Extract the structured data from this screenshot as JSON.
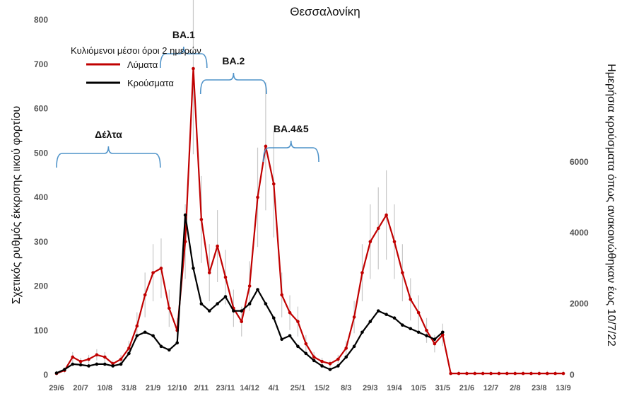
{
  "chart_data": {
    "type": "line",
    "title": "Θεσσαλονίκη",
    "ylabel": "Σχετικός ρυθμός έκκρισης ιικού φορτίου",
    "ylabel_right": "Ημερήσια κρούσματα όπως ανακοινώθηκαν έως 10/7/22",
    "ylim": [
      0,
      800
    ],
    "ylim_right": [
      0,
      10000
    ],
    "yticks": [
      0,
      100,
      200,
      300,
      400,
      500,
      600,
      700,
      800
    ],
    "yticks_right": [
      0,
      2000,
      4000,
      6000
    ],
    "x_index_range": [
      0,
      63
    ],
    "x_tick_labels": [
      "29/6",
      "20/7",
      "10/8",
      "31/8",
      "21/9",
      "12/10",
      "2/11",
      "23/11",
      "14/12",
      "4/1",
      "25/1",
      "15/2",
      "8/3",
      "29/3",
      "19/4",
      "10/5",
      "31/5",
      "21/6",
      "12/7",
      "2/8",
      "23/8",
      "13/9"
    ],
    "legend": {
      "title": "Κυλιόμενοι μέσοι όροι 2 ημερών",
      "entries": [
        "Λύματα",
        "Κρούσματα"
      ],
      "colors": [
        "#c00000",
        "#000000"
      ],
      "position": "top-left"
    },
    "series": [
      {
        "name": "Λύματα",
        "axis": "left",
        "color": "#c00000",
        "x": [
          0,
          1,
          2,
          3,
          4,
          5,
          6,
          7,
          8,
          9,
          10,
          11,
          12,
          13,
          14,
          15,
          16,
          17,
          18,
          19,
          20,
          21,
          22,
          23,
          24,
          25,
          26,
          27,
          28,
          29,
          30,
          31,
          32,
          33,
          34,
          35,
          36,
          37,
          38,
          39,
          40,
          41,
          42,
          43,
          44,
          45,
          46,
          47,
          48,
          49,
          50,
          51,
          52,
          53,
          54,
          55,
          56,
          57,
          58,
          59,
          60,
          61,
          62,
          63
        ],
        "values": [
          3,
          10,
          40,
          30,
          35,
          45,
          40,
          25,
          35,
          60,
          110,
          180,
          230,
          240,
          150,
          100,
          300,
          690,
          350,
          230,
          290,
          220,
          150,
          120,
          200,
          400,
          515,
          430,
          180,
          140,
          120,
          70,
          40,
          30,
          25,
          35,
          60,
          130,
          230,
          300,
          330,
          360,
          300,
          230,
          170,
          140,
          100,
          70,
          90,
          3,
          3,
          3,
          3,
          3,
          3,
          3,
          3,
          3,
          3,
          3,
          3,
          3,
          3,
          3
        ]
      },
      {
        "name": "Κρούσματα",
        "axis": "right",
        "color": "#000000",
        "x": [
          0,
          1,
          2,
          3,
          4,
          5,
          6,
          7,
          8,
          9,
          10,
          11,
          12,
          13,
          14,
          15,
          16,
          17,
          18,
          19,
          20,
          21,
          22,
          23,
          24,
          25,
          26,
          27,
          28,
          29,
          30,
          31,
          32,
          33,
          34,
          35,
          36,
          37,
          38,
          39,
          40,
          41,
          42,
          43,
          44,
          45,
          46,
          47,
          48
        ],
        "values": [
          50,
          150,
          300,
          280,
          250,
          300,
          300,
          250,
          300,
          600,
          1100,
          1200,
          1100,
          800,
          700,
          900,
          4500,
          3000,
          2000,
          1800,
          2000,
          2200,
          1800,
          1800,
          2000,
          2400,
          2000,
          1600,
          1000,
          1100,
          800,
          600,
          400,
          250,
          150,
          250,
          500,
          800,
          1200,
          1500,
          1800,
          1700,
          1600,
          1400,
          1300,
          1200,
          1100,
          1000,
          1200
        ]
      }
    ],
    "variant_annotations": [
      {
        "label": "Δέλτα",
        "start": 0,
        "end": 12.9
      },
      {
        "label": "BA.1",
        "start": 12.9,
        "end": 18.7
      },
      {
        "label": "BA.2",
        "start": 17.9,
        "end": 26.1
      },
      {
        "label": "BA.4&5",
        "start": 25.7,
        "end": 32.6
      }
    ]
  }
}
